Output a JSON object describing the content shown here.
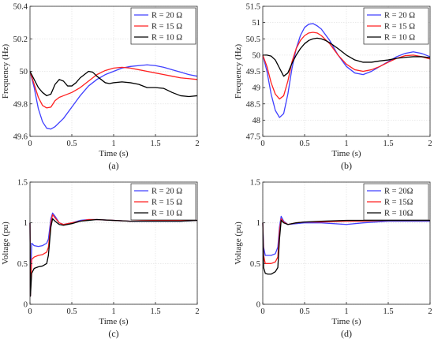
{
  "chart_data": [
    {
      "type": "line",
      "panel_label": "(a)",
      "xlabel": "Time (s)",
      "ylabel": "Frequency (Hz)",
      "xlim": [
        0,
        2
      ],
      "ylim": [
        49.6,
        50.4
      ],
      "xticks": [
        0,
        0.5,
        1,
        1.5,
        2
      ],
      "xtick_labels": [
        "0",
        "0.5",
        "1",
        "1.5",
        "2"
      ],
      "yticks": [
        49.6,
        49.8,
        50,
        50.2,
        50.4
      ],
      "ytick_labels": [
        "49.6",
        "49.8",
        "50",
        "50.2",
        "50.4"
      ],
      "grid": true,
      "legend_position": "top-right",
      "series": [
        {
          "name": "R = 20 Ω",
          "color": "#4040ff",
          "x": [
            0,
            0.05,
            0.1,
            0.15,
            0.2,
            0.25,
            0.3,
            0.4,
            0.5,
            0.6,
            0.7,
            0.8,
            0.9,
            1.0,
            1.1,
            1.2,
            1.3,
            1.4,
            1.5,
            1.6,
            1.7,
            1.8,
            1.9,
            2.0
          ],
          "y": [
            50.0,
            49.9,
            49.77,
            49.69,
            49.65,
            49.645,
            49.66,
            49.71,
            49.78,
            49.85,
            49.91,
            49.95,
            49.98,
            50.0,
            50.02,
            50.03,
            50.035,
            50.04,
            50.035,
            50.025,
            50.01,
            49.995,
            49.98,
            49.97
          ]
        },
        {
          "name": "R = 15 Ω",
          "color": "#ff2020",
          "x": [
            0,
            0.05,
            0.1,
            0.15,
            0.2,
            0.25,
            0.3,
            0.35,
            0.4,
            0.5,
            0.6,
            0.7,
            0.8,
            0.9,
            1.0,
            1.1,
            1.2,
            1.3,
            1.4,
            1.5,
            1.6,
            1.7,
            1.8,
            1.9,
            2.0
          ],
          "y": [
            50.0,
            49.92,
            49.84,
            49.79,
            49.775,
            49.78,
            49.82,
            49.84,
            49.85,
            49.87,
            49.9,
            49.94,
            49.98,
            50.005,
            50.02,
            50.025,
            50.02,
            50.01,
            50.0,
            49.99,
            49.98,
            49.97,
            49.96,
            49.955,
            49.95
          ]
        },
        {
          "name": "R = 10 Ω",
          "color": "#000000",
          "x": [
            0,
            0.05,
            0.1,
            0.15,
            0.2,
            0.25,
            0.3,
            0.35,
            0.4,
            0.45,
            0.5,
            0.55,
            0.6,
            0.65,
            0.7,
            0.75,
            0.8,
            0.85,
            0.9,
            0.95,
            1.0,
            1.1,
            1.2,
            1.3,
            1.4,
            1.5,
            1.6,
            1.7,
            1.8,
            1.9,
            2.0
          ],
          "y": [
            50.0,
            49.95,
            49.9,
            49.87,
            49.85,
            49.86,
            49.92,
            49.95,
            49.94,
            49.91,
            49.91,
            49.93,
            49.96,
            49.98,
            50.0,
            49.995,
            49.97,
            49.95,
            49.93,
            49.925,
            49.93,
            49.935,
            49.93,
            49.92,
            49.9,
            49.9,
            49.895,
            49.87,
            49.85,
            49.845,
            49.85
          ]
        }
      ]
    },
    {
      "type": "line",
      "panel_label": "(b)",
      "xlabel": "Time (s)",
      "ylabel": "Frequency (Hz)",
      "xlim": [
        0,
        2
      ],
      "ylim": [
        47.5,
        51.5
      ],
      "xticks": [
        0,
        0.5,
        1,
        1.5,
        2
      ],
      "xtick_labels": [
        "0",
        "0.5",
        "1",
        "1.5",
        "2"
      ],
      "yticks": [
        47.5,
        48,
        48.5,
        49,
        49.5,
        50,
        50.5,
        51,
        51.5
      ],
      "ytick_labels": [
        "47.5",
        "48",
        "48.5",
        "49",
        "49.5",
        "50",
        "50.5",
        "51",
        "51.5"
      ],
      "grid": true,
      "legend_position": "top-right",
      "series": [
        {
          "name": "R = 20 Ω",
          "color": "#4040ff",
          "x": [
            0,
            0.05,
            0.1,
            0.15,
            0.2,
            0.25,
            0.3,
            0.35,
            0.4,
            0.45,
            0.5,
            0.55,
            0.6,
            0.65,
            0.7,
            0.8,
            0.9,
            1.0,
            1.1,
            1.2,
            1.3,
            1.4,
            1.5,
            1.6,
            1.7,
            1.8,
            1.9,
            2.0
          ],
          "y": [
            50.0,
            49.5,
            48.8,
            48.3,
            48.08,
            48.2,
            48.8,
            49.6,
            50.2,
            50.6,
            50.85,
            50.95,
            50.97,
            50.9,
            50.8,
            50.45,
            50.0,
            49.65,
            49.45,
            49.4,
            49.5,
            49.65,
            49.8,
            49.95,
            50.05,
            50.1,
            50.05,
            49.95
          ]
        },
        {
          "name": "R = 15 Ω",
          "color": "#ff2020",
          "x": [
            0,
            0.05,
            0.1,
            0.15,
            0.2,
            0.25,
            0.3,
            0.35,
            0.4,
            0.45,
            0.5,
            0.55,
            0.6,
            0.65,
            0.7,
            0.8,
            0.9,
            1.0,
            1.1,
            1.2,
            1.3,
            1.4,
            1.5,
            1.6,
            1.7,
            1.8,
            1.9,
            2.0
          ],
          "y": [
            50.0,
            49.65,
            49.15,
            48.8,
            48.65,
            48.75,
            49.2,
            49.8,
            50.2,
            50.45,
            50.6,
            50.68,
            50.7,
            50.68,
            50.6,
            50.35,
            50.0,
            49.72,
            49.55,
            49.5,
            49.55,
            49.65,
            49.78,
            49.9,
            49.98,
            50.0,
            49.95,
            49.88
          ]
        },
        {
          "name": "R = 10 Ω",
          "color": "#000000",
          "x": [
            0,
            0.05,
            0.1,
            0.15,
            0.2,
            0.25,
            0.3,
            0.35,
            0.4,
            0.45,
            0.5,
            0.55,
            0.6,
            0.65,
            0.7,
            0.75,
            0.8,
            0.9,
            1.0,
            1.1,
            1.2,
            1.3,
            1.4,
            1.5,
            1.6,
            1.7,
            1.8,
            1.9,
            2.0
          ],
          "y": [
            50.0,
            50.0,
            49.97,
            49.85,
            49.6,
            49.35,
            49.45,
            49.75,
            50.0,
            50.2,
            50.35,
            50.45,
            50.5,
            50.52,
            50.5,
            50.45,
            50.38,
            50.2,
            50.0,
            49.85,
            49.78,
            49.78,
            49.82,
            49.85,
            49.9,
            49.93,
            49.95,
            49.95,
            49.92
          ]
        }
      ]
    },
    {
      "type": "line",
      "panel_label": "(c)",
      "xlabel": "Time (s)",
      "ylabel": "Voltage (pu)",
      "xlim": [
        0,
        2
      ],
      "ylim": [
        0,
        1.5
      ],
      "xticks": [
        0,
        0.5,
        1,
        1.5,
        2
      ],
      "xtick_labels": [
        "0",
        "0.5",
        "1",
        "1.5",
        "2"
      ],
      "yticks": [
        0,
        0.5,
        1,
        1.5
      ],
      "ytick_labels": [
        "0",
        "0.5",
        "1",
        "1.5"
      ],
      "grid": true,
      "legend_position": "top-right",
      "series": [
        {
          "name": "R = 20 Ω",
          "color": "#4040ff",
          "x": [
            0,
            0.005,
            0.02,
            0.05,
            0.1,
            0.15,
            0.2,
            0.22,
            0.25,
            0.27,
            0.3,
            0.35,
            0.4,
            0.5,
            0.6,
            0.7,
            0.8,
            1.0,
            1.2,
            1.5,
            1.8,
            2.0
          ],
          "y": [
            1.0,
            0.1,
            0.75,
            0.72,
            0.71,
            0.72,
            0.75,
            0.8,
            1.05,
            1.12,
            1.08,
            1.0,
            0.98,
            1.0,
            1.03,
            1.04,
            1.04,
            1.03,
            1.02,
            1.02,
            1.02,
            1.03
          ]
        },
        {
          "name": "R = 15 Ω",
          "color": "#ff2020",
          "x": [
            0,
            0.005,
            0.02,
            0.05,
            0.1,
            0.15,
            0.2,
            0.22,
            0.25,
            0.27,
            0.3,
            0.35,
            0.4,
            0.5,
            0.6,
            0.7,
            0.8,
            1.0,
            1.2,
            1.5,
            1.8,
            2.0
          ],
          "y": [
            1.0,
            0.1,
            0.55,
            0.58,
            0.6,
            0.61,
            0.64,
            0.7,
            1.0,
            1.1,
            1.06,
            1.0,
            0.98,
            1.0,
            1.02,
            1.04,
            1.04,
            1.03,
            1.02,
            1.03,
            1.03,
            1.03
          ]
        },
        {
          "name": "R = 10 Ω",
          "color": "#000000",
          "x": [
            0,
            0.005,
            0.02,
            0.05,
            0.1,
            0.15,
            0.2,
            0.22,
            0.25,
            0.27,
            0.3,
            0.35,
            0.4,
            0.5,
            0.6,
            0.7,
            0.8,
            1.0,
            1.2,
            1.5,
            1.8,
            2.0
          ],
          "y": [
            1.0,
            0.1,
            0.38,
            0.44,
            0.46,
            0.47,
            0.5,
            0.6,
            0.95,
            1.05,
            1.02,
            0.98,
            0.97,
            0.99,
            1.02,
            1.03,
            1.04,
            1.03,
            1.02,
            1.02,
            1.02,
            1.03
          ]
        }
      ]
    },
    {
      "type": "line",
      "panel_label": "(d)",
      "xlabel": "Time (s)",
      "ylabel": "Voltage (pu)",
      "xlim": [
        0,
        2
      ],
      "ylim": [
        0,
        1.5
      ],
      "xticks": [
        0,
        0.5,
        1,
        1.5,
        2
      ],
      "xtick_labels": [
        "0",
        "0.5",
        "1",
        "1.5",
        "2"
      ],
      "yticks": [
        0,
        0.5,
        1,
        1.5
      ],
      "ytick_labels": [
        "0",
        "0.5",
        "1",
        "1.5"
      ],
      "grid": true,
      "legend_position": "top-right",
      "series": [
        {
          "name": "R = 20Ω",
          "color": "#4040ff",
          "x": [
            0,
            0.01,
            0.03,
            0.06,
            0.1,
            0.15,
            0.18,
            0.2,
            0.22,
            0.25,
            0.3,
            0.4,
            0.5,
            0.7,
            1.0,
            1.2,
            1.5,
            1.8,
            2.0
          ],
          "y": [
            1.0,
            0.7,
            0.6,
            0.6,
            0.6,
            0.62,
            0.7,
            0.95,
            1.08,
            1.02,
            0.98,
            0.99,
            1.0,
            1.0,
            0.98,
            1.0,
            1.02,
            1.02,
            1.02
          ]
        },
        {
          "name": "R = 15Ω",
          "color": "#ff2020",
          "x": [
            0,
            0.01,
            0.03,
            0.06,
            0.1,
            0.15,
            0.18,
            0.2,
            0.22,
            0.25,
            0.3,
            0.4,
            0.5,
            0.7,
            1.0,
            1.2,
            1.5,
            1.8,
            2.0
          ],
          "y": [
            1.0,
            0.6,
            0.5,
            0.5,
            0.5,
            0.52,
            0.58,
            0.9,
            1.05,
            1.01,
            0.98,
            1.0,
            1.01,
            1.01,
            1.02,
            1.02,
            1.03,
            1.03,
            1.03
          ]
        },
        {
          "name": "R = 10Ω",
          "color": "#000000",
          "x": [
            0,
            0.01,
            0.03,
            0.06,
            0.1,
            0.15,
            0.18,
            0.2,
            0.22,
            0.25,
            0.3,
            0.4,
            0.5,
            0.7,
            1.0,
            1.2,
            1.5,
            1.8,
            2.0
          ],
          "y": [
            1.0,
            0.45,
            0.38,
            0.37,
            0.37,
            0.4,
            0.45,
            0.8,
            1.03,
            1.0,
            0.98,
            1.0,
            1.01,
            1.02,
            1.03,
            1.03,
            1.03,
            1.03,
            1.03
          ]
        }
      ]
    }
  ]
}
